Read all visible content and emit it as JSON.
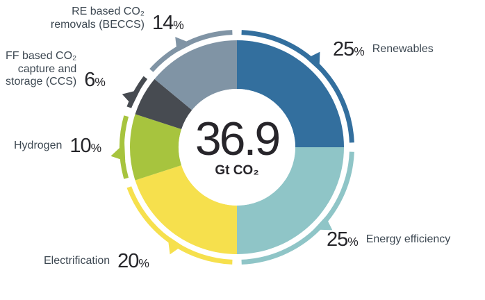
{
  "chart_data": {
    "type": "pie",
    "subtype": "donut",
    "center_value": "36.9",
    "center_unit": "Gt CO₂",
    "legend_position": "around",
    "segments": [
      {
        "label": "Renewables",
        "value": 25,
        "color": "#336f9e"
      },
      {
        "label": "Energy efficiency",
        "value": 25,
        "color": "#8fc5c7"
      },
      {
        "label": "Electrification",
        "value": 20,
        "color": "#f6e04d"
      },
      {
        "label": "Hydrogen",
        "value": 10,
        "color": "#a7c43e"
      },
      {
        "label": "FF based CO₂ capture and storage (CCS)",
        "value": 6,
        "color": "#474b51"
      },
      {
        "label": "RE based CO₂ removals (BECCS)",
        "value": 14,
        "color": "#8094a5"
      }
    ]
  },
  "labels": {
    "renewables": {
      "value": "25",
      "sign": "%",
      "name": "Renewables"
    },
    "energy_efficiency": {
      "value": "25",
      "sign": "%",
      "name": "Energy efficiency"
    },
    "electrification": {
      "name": "Electrification",
      "value": "20",
      "sign": "%"
    },
    "hydrogen": {
      "name": "Hydrogen",
      "value": "10",
      "sign": "%"
    },
    "ccs": {
      "line1": "FF based CO₂",
      "line2": "capture and",
      "line3": "storage (CCS)",
      "value": "6",
      "sign": "%"
    },
    "beccs": {
      "line1": "RE based CO₂",
      "line2": "removals (BECCS)",
      "value": "14",
      "sign": "%"
    }
  }
}
